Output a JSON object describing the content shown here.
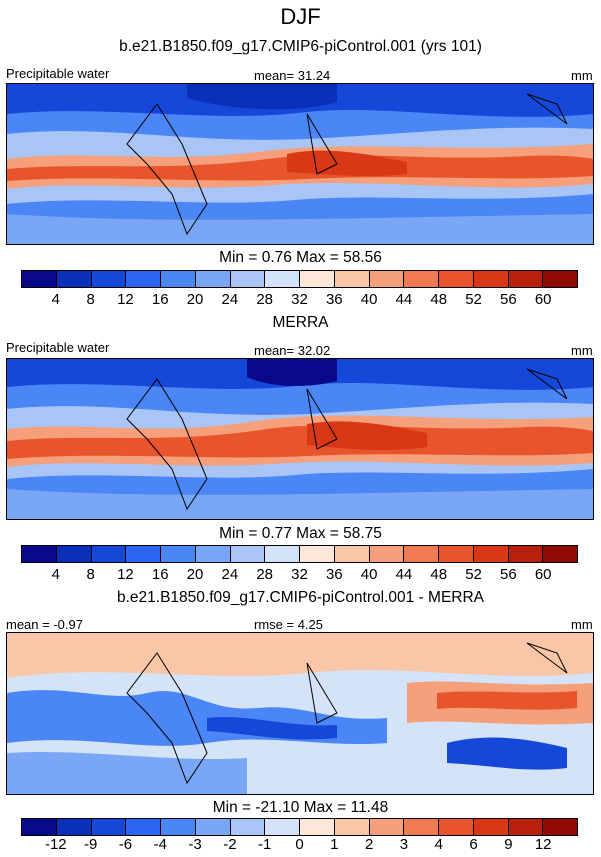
{
  "title": "DJF",
  "colors": {
    "abs_scale": [
      "#08088a",
      "#0a2fb8",
      "#1548d9",
      "#2a66f0",
      "#4a86f5",
      "#7aa7f5",
      "#a8c5f5",
      "#d5e3f8",
      "#fde7d8",
      "#f9c6a7",
      "#f5a07b",
      "#f07a52",
      "#e8552d",
      "#d83816",
      "#b7210c",
      "#8f0a03"
    ],
    "diff_scale": [
      "#08088a",
      "#0a2fb8",
      "#1548d9",
      "#2a66f0",
      "#4a86f5",
      "#7aa7f5",
      "#a8c5f5",
      "#d5e3f8",
      "#fde7d8",
      "#f9c6a7",
      "#f5a07b",
      "#f07a52",
      "#e8552d",
      "#d83816",
      "#b7210c",
      "#8f0a03"
    ]
  },
  "panels": [
    {
      "title": "b.e21.B1850.f09_g17.CMIP6-piControl.001 (yrs 101)",
      "left_label": "Precipitable water",
      "center_label": "mean=  31.24",
      "right_label": "mm",
      "minmax": "Min =   0.76 Max =  58.56",
      "ticks": [
        "4",
        "8",
        "12",
        "16",
        "20",
        "24",
        "28",
        "32",
        "36",
        "40",
        "44",
        "48",
        "52",
        "56",
        "60"
      ]
    },
    {
      "title": "MERRA",
      "left_label": "Precipitable water",
      "center_label": "mean=  32.02",
      "right_label": "mm",
      "minmax": "Min =   0.77 Max =  58.75",
      "ticks": [
        "4",
        "8",
        "12",
        "16",
        "20",
        "24",
        "28",
        "32",
        "36",
        "40",
        "44",
        "48",
        "52",
        "56",
        "60"
      ]
    },
    {
      "title": "b.e21.B1850.f09_g17.CMIP6-piControl.001 - MERRA",
      "left_label": "mean =  -0.97",
      "center_label": "rmse =   4.25",
      "right_label": "mm",
      "minmax": "Min = -21.10 Max =  11.48",
      "ticks": [
        "-12",
        "-9",
        "-6",
        "-4",
        "-3",
        "-2",
        "-1",
        "0",
        "1",
        "2",
        "3",
        "4",
        "6",
        "9",
        "12"
      ]
    }
  ],
  "chart_data": [
    {
      "type": "heatmap",
      "title": "b.e21.B1850.f09_g17.CMIP6-piControl.001 (yrs 101)",
      "variable": "Precipitable water",
      "units": "mm",
      "mean": 31.24,
      "min": 0.76,
      "max": 58.56,
      "colorbar_levels": [
        4,
        8,
        12,
        16,
        20,
        24,
        28,
        32,
        36,
        40,
        44,
        48,
        52,
        56,
        60
      ]
    },
    {
      "type": "heatmap",
      "title": "MERRA",
      "variable": "Precipitable water",
      "units": "mm",
      "mean": 32.02,
      "min": 0.77,
      "max": 58.75,
      "colorbar_levels": [
        4,
        8,
        12,
        16,
        20,
        24,
        28,
        32,
        36,
        40,
        44,
        48,
        52,
        56,
        60
      ]
    },
    {
      "type": "heatmap",
      "title": "b.e21.B1850.f09_g17.CMIP6-piControl.001 - MERRA",
      "units": "mm",
      "mean": -0.97,
      "rmse": 4.25,
      "min": -21.1,
      "max": 11.48,
      "colorbar_levels": [
        -12,
        -9,
        -6,
        -4,
        -3,
        -2,
        -1,
        0,
        1,
        2,
        3,
        4,
        6,
        9,
        12
      ]
    }
  ]
}
